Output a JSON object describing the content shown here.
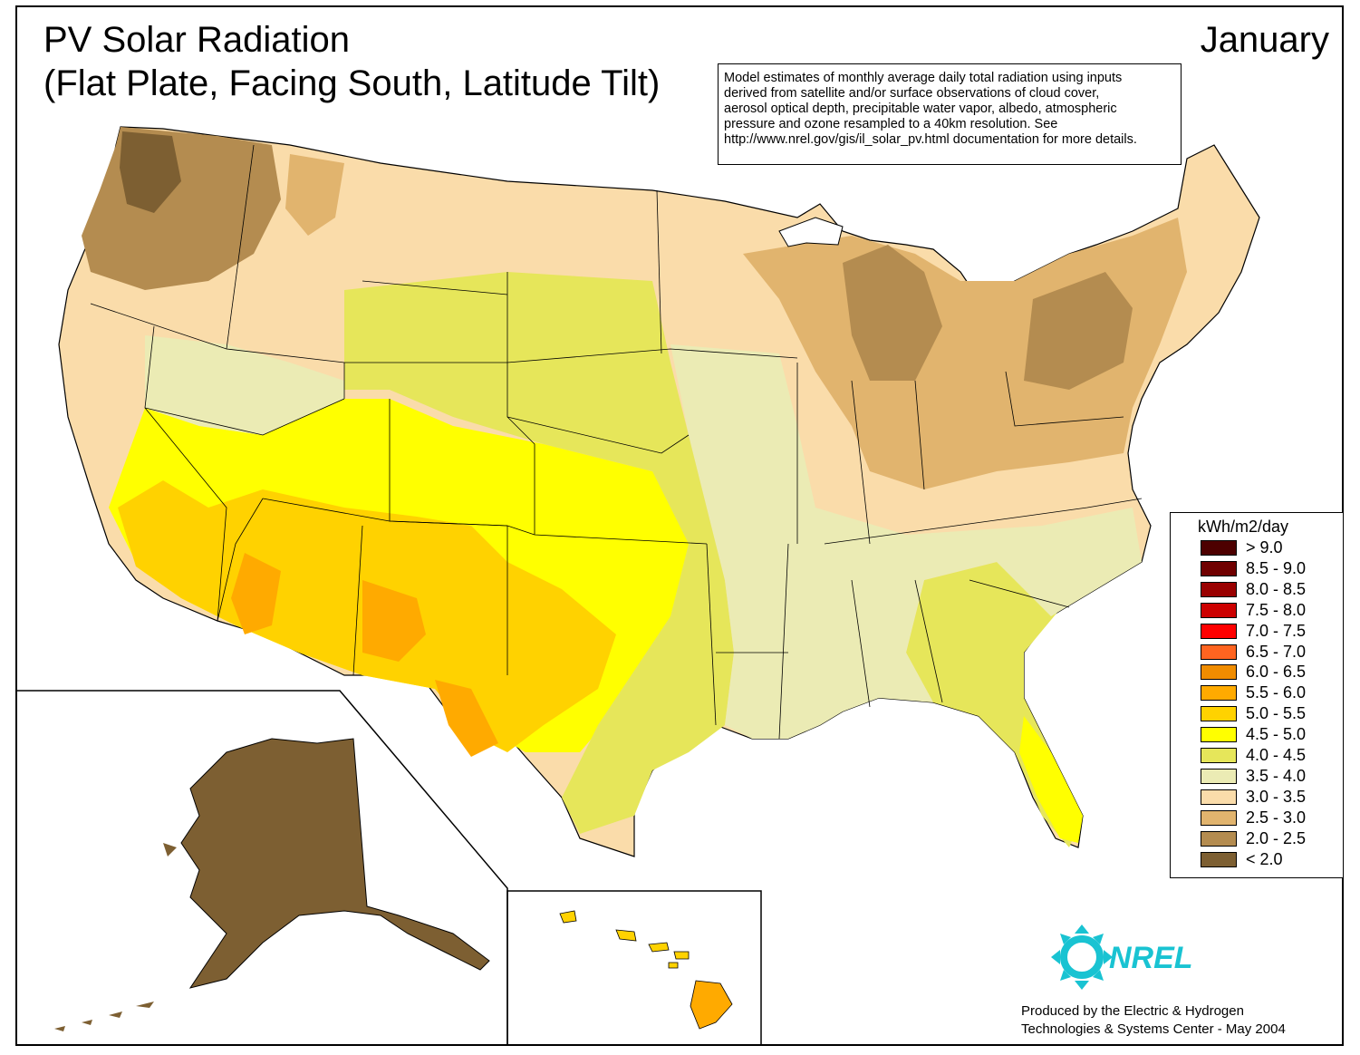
{
  "title": {
    "line1": "PV Solar Radiation",
    "line2": "(Flat Plate, Facing South, Latitude Tilt)"
  },
  "month": "January",
  "description": {
    "lines": [
      "Model estimates of monthly average daily total radiation using inputs",
      "derived from satellite and/or surface observations of cloud cover,",
      "aerosol optical depth, precipitable water vapor, albedo, atmospheric",
      "pressure and ozone resampled to a 40km resolution.  See",
      "http://www.nrel.gov/gis/il_solar_pv.html documentation for more details."
    ]
  },
  "legend": {
    "title": "kWh/m2/day",
    "items": [
      {
        "label": "> 9.0",
        "color": "#4d0000"
      },
      {
        "label": "8.5 - 9.0",
        "color": "#700000"
      },
      {
        "label": "8.0 - 8.5",
        "color": "#990000"
      },
      {
        "label": "7.5 - 8.0",
        "color": "#cc0000"
      },
      {
        "label": "7.0 - 7.5",
        "color": "#ff0000"
      },
      {
        "label": "6.5 - 7.0",
        "color": "#ff6420"
      },
      {
        "label": "6.0 - 6.5",
        "color": "#f08c00"
      },
      {
        "label": "5.5 - 6.0",
        "color": "#ffaa00"
      },
      {
        "label": "5.0 - 5.5",
        "color": "#ffd200"
      },
      {
        "label": "4.5 - 5.0",
        "color": "#ffff00"
      },
      {
        "label": "4.0 - 4.5",
        "color": "#e6e65a"
      },
      {
        "label": "3.5 - 4.0",
        "color": "#ebebb4"
      },
      {
        "label": "3.0 - 3.5",
        "color": "#fadcaa"
      },
      {
        "label": "2.5 - 3.0",
        "color": "#e1b46e"
      },
      {
        "label": "2.0 - 2.5",
        "color": "#b48c50"
      },
      {
        "label": "< 2.0",
        "color": "#7d5f32"
      }
    ]
  },
  "logo": {
    "text": "NREL",
    "color": "#19c3d2"
  },
  "credit": {
    "line1": "Produced by the Electric & Hydrogen",
    "line2": "Technologies & Systems Center - May 2004"
  }
}
